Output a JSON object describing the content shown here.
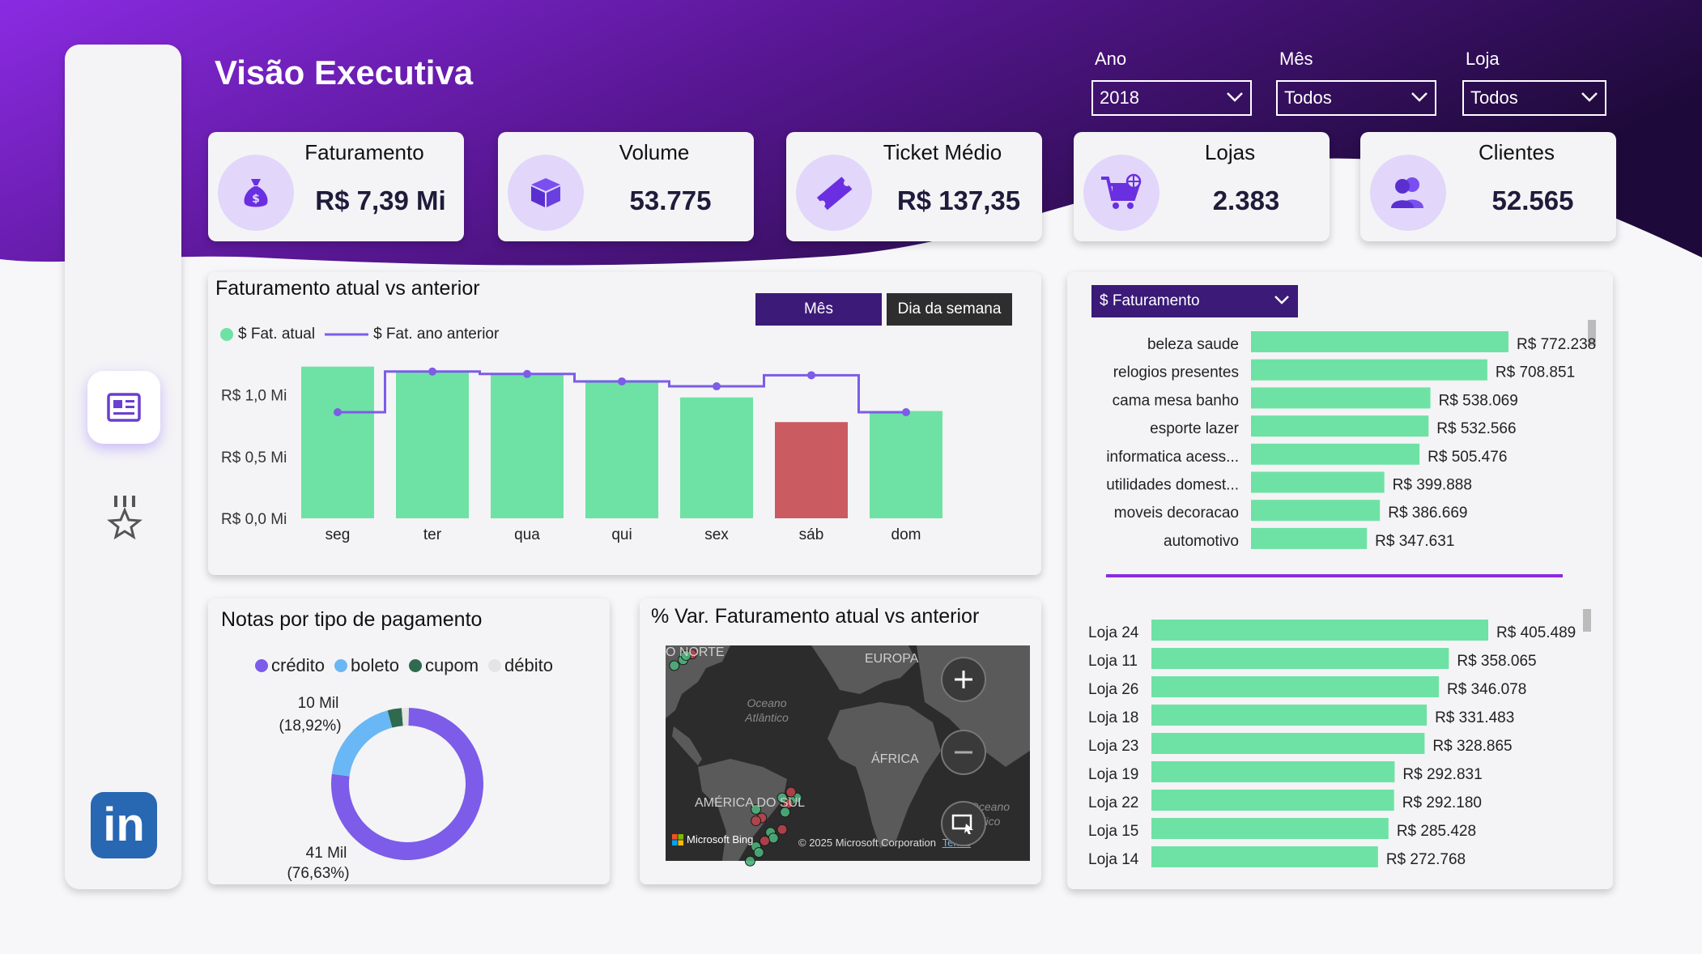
{
  "colors": {
    "accent_green": "#6ee2a4",
    "alert_red": "#c95b61",
    "purple_line": "#7c5ce8",
    "header_purple": "#6a1fb0",
    "header_dark": "#2a0f4e",
    "credito": "#7c5ce8",
    "boleto": "#6ab7f5",
    "cupom": "#2f6a4f",
    "debito": "#e4e4e4"
  },
  "sidebar": {
    "items": [
      {
        "icon": "report-icon"
      },
      {
        "icon": "medal-icon"
      },
      {
        "icon": "linkedin-icon",
        "label": "in"
      }
    ]
  },
  "header": {
    "title": "Visão Executiva"
  },
  "filters": [
    {
      "label": "Ano",
      "value": "2018"
    },
    {
      "label": "Mês",
      "value": "Todos"
    },
    {
      "label": "Loja",
      "value": "Todos"
    }
  ],
  "kpis": [
    {
      "title": "Faturamento",
      "value": "R$ 7,39 Mi",
      "icon": "money-bag-icon"
    },
    {
      "title": "Volume",
      "value": "53.775",
      "icon": "box-icon"
    },
    {
      "title": "Ticket Médio",
      "value": "R$ 137,35",
      "icon": "ticket-icon"
    },
    {
      "title": "Lojas",
      "value": "2.383",
      "icon": "cart-icon"
    },
    {
      "title": "Clientes",
      "value": "52.565",
      "icon": "users-icon"
    }
  ],
  "weekday_card": {
    "title": "Faturamento atual vs anterior",
    "toggle": [
      "Mês",
      "Dia da semana"
    ]
  },
  "payment_card": {
    "title": "Notas por tipo de pagamento"
  },
  "map_card": {
    "title": "% Var. Faturamento atual vs anterior",
    "labels": {
      "north": "O NORTE",
      "europe": "EUROPA",
      "ocean": "Oceano Atlântico",
      "africa": "ÁFRICA",
      "south_america": "AMÉRICA DO SUL",
      "indian": "Oceano Índico",
      "bing": "Microsoft Bing",
      "copyright": "© 2025 Microsoft Corporation",
      "terms": "Terms"
    },
    "points": [
      {
        "lat": 40,
        "lon": -74,
        "status": "up"
      },
      {
        "lat": 42,
        "lon": -71,
        "status": "down"
      },
      {
        "lat": 41.5,
        "lon": -73,
        "status": "up"
      },
      {
        "lat": 38,
        "lon": -77,
        "status": "up"
      },
      {
        "lat": -8,
        "lon": -35,
        "status": "up"
      },
      {
        "lat": -9,
        "lon": -37,
        "status": "up"
      },
      {
        "lat": -6,
        "lon": -37,
        "status": "down"
      },
      {
        "lat": -10,
        "lon": -38,
        "status": "down"
      },
      {
        "lat": -8,
        "lon": -40,
        "status": "up"
      },
      {
        "lat": -15,
        "lon": -47,
        "status": "down"
      },
      {
        "lat": -16,
        "lon": -49,
        "status": "down"
      },
      {
        "lat": -12,
        "lon": -49,
        "status": "up"
      },
      {
        "lat": -20,
        "lon": -44,
        "status": "up"
      },
      {
        "lat": -22,
        "lon": -43,
        "status": "up"
      },
      {
        "lat": -23,
        "lon": -46,
        "status": "down"
      },
      {
        "lat": -25,
        "lon": -49,
        "status": "up"
      },
      {
        "lat": -27,
        "lon": -48,
        "status": "up"
      },
      {
        "lat": -30,
        "lon": -51,
        "status": "up"
      },
      {
        "lat": -19,
        "lon": -40,
        "status": "down"
      },
      {
        "lat": -13,
        "lon": -39,
        "status": "up"
      }
    ]
  },
  "measure_selector": {
    "value": "$ Faturamento"
  },
  "chart_data": [
    {
      "type": "bar",
      "title": "Faturamento atual vs anterior",
      "categories": [
        "seg",
        "ter",
        "qua",
        "qui",
        "sex",
        "sáb",
        "dom"
      ],
      "series": [
        {
          "name": "$ Fat. atual",
          "kind": "bar",
          "values": [
            1.23,
            1.19,
            1.17,
            1.12,
            0.98,
            0.78,
            0.87
          ]
        },
        {
          "name": "$ Fat. ano anterior",
          "kind": "step-line",
          "values": [
            0.86,
            1.19,
            1.17,
            1.11,
            1.07,
            1.16,
            0.86
          ]
        }
      ],
      "highlight_category": "sáb",
      "y_ticks": [
        "R$ 0,0 Mi",
        "R$ 0,5 Mi",
        "R$ 1,0 Mi"
      ],
      "ylim": [
        0,
        1.3
      ],
      "unit": "Mi"
    },
    {
      "type": "pie",
      "style": "donut",
      "title": "Notas por tipo de pagamento",
      "slices": [
        {
          "name": "crédito",
          "value": 41,
          "label": "41 Mil",
          "pct": "(76,63%)"
        },
        {
          "name": "boleto",
          "value": 10,
          "label": "10 Mil",
          "pct": "(18,92%)"
        },
        {
          "name": "cupom",
          "value": 1.6
        },
        {
          "name": "débito",
          "value": 0.8
        }
      ]
    },
    {
      "type": "bar",
      "orientation": "horizontal",
      "categories": [
        "beleza saude",
        "relogios presentes",
        "cama mesa banho",
        "esporte lazer",
        "informatica acess...",
        "utilidades domest...",
        "moveis decoracao",
        "automotivo"
      ],
      "values": [
        772238,
        708851,
        538069,
        532566,
        505476,
        399888,
        386669,
        347631
      ],
      "value_labels": [
        "R$ 772.238",
        "R$ 708.851",
        "R$ 538.069",
        "R$ 532.566",
        "R$ 505.476",
        "R$ 399.888",
        "R$ 386.669",
        "R$ 347.631"
      ]
    },
    {
      "type": "bar",
      "orientation": "horizontal",
      "categories": [
        "Loja 24",
        "Loja 11",
        "Loja 26",
        "Loja 18",
        "Loja 23",
        "Loja 19",
        "Loja 22",
        "Loja 15",
        "Loja 14"
      ],
      "values": [
        405489,
        358065,
        346078,
        331483,
        328865,
        292831,
        292180,
        285428,
        272768
      ],
      "value_labels": [
        "R$ 405.489",
        "R$ 358.065",
        "R$ 346.078",
        "R$ 331.483",
        "R$ 328.865",
        "R$ 292.831",
        "R$ 292.180",
        "R$ 285.428",
        "R$ 272.768"
      ]
    }
  ]
}
